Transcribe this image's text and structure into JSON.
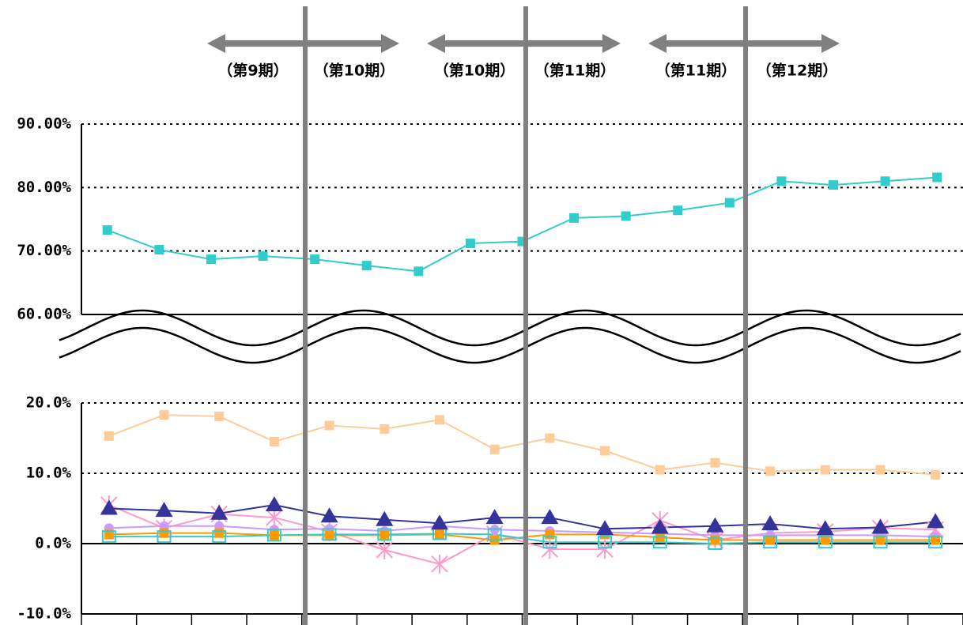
{
  "chart_data": [
    {
      "type": "line",
      "categories": [
        null,
        null,
        null,
        null,
        null,
        null,
        null,
        null,
        null,
        null,
        null,
        null,
        null,
        null,
        null,
        null,
        null
      ],
      "series": [
        {
          "color": "#33CCCC",
          "marker": "square",
          "values": [
            73.3,
            70.2,
            68.7,
            69.2,
            68.7,
            67.7,
            66.8,
            71.2,
            71.5,
            75.2,
            75.5,
            76.4,
            77.6,
            81.0,
            80.4,
            81.0,
            81.6
          ]
        }
      ],
      "ylim": [
        60,
        90
      ],
      "yticks": [
        {
          "value": 60,
          "label": "60.00%"
        },
        {
          "value": 70,
          "label": "70.00%"
        },
        {
          "value": 80,
          "label": "80.00%"
        },
        {
          "value": 90,
          "label": "90.00%"
        }
      ],
      "grid": true,
      "annotations": [
        "（第9期）",
        "（第10期）",
        "（第10期）",
        "（第11期）",
        "（第11期）",
        "（第12期）"
      ]
    },
    {
      "type": "line",
      "categories": [
        null,
        null,
        null,
        null,
        null,
        null,
        null,
        null,
        null,
        null,
        null,
        null,
        null,
        null,
        null,
        null
      ],
      "series": [
        {
          "color": "#FFCC99",
          "marker": "square",
          "values": [
            15.3,
            18.3,
            18.1,
            14.5,
            16.8,
            16.3,
            17.6,
            13.4,
            15.0,
            13.2,
            10.5,
            11.5,
            10.3,
            10.5,
            10.5,
            9.8
          ]
        },
        {
          "color": "#FF99CC",
          "marker": "asterisk",
          "values": [
            5.5,
            2.2,
            4.2,
            3.7,
            1.7,
            -0.9,
            -2.9,
            1.4,
            -0.8,
            -0.8,
            3.3,
            0.5,
            1.5,
            1.7,
            2.2,
            2.0
          ]
        },
        {
          "color": "#CC99FF",
          "marker": "circle",
          "values": [
            2.2,
            2.5,
            2.5,
            2.0,
            2.1,
            1.8,
            2.5,
            2.0,
            1.8,
            1.6,
            1.4,
            1.2,
            1.2,
            1.2,
            1.2,
            1.0
          ]
        },
        {
          "color": "#FF9900",
          "marker": "square",
          "values": [
            1.3,
            1.5,
            1.5,
            1.2,
            1.2,
            1.2,
            1.3,
            0.5,
            1.3,
            1.3,
            0.9,
            0.5,
            0.5,
            0.5,
            0.5,
            0.5
          ]
        },
        {
          "color": "#33CCCC",
          "marker": "square-open",
          "values": [
            1.0,
            1.0,
            1.0,
            1.2,
            1.3,
            1.3,
            1.4,
            1.3,
            0.2,
            0.2,
            0.2,
            0.0,
            0.2,
            0.2,
            0.2,
            0.2
          ]
        },
        {
          "color": "#333399",
          "marker": "triangle",
          "values": [
            5.0,
            4.7,
            4.3,
            5.5,
            3.9,
            3.4,
            2.9,
            3.7,
            3.7,
            2.1,
            2.3,
            2.5,
            2.8,
            2.1,
            2.3,
            3.1
          ]
        }
      ],
      "ylim": [
        -10,
        20
      ],
      "yticks": [
        {
          "value": -10,
          "label": "-10.0%"
        },
        {
          "value": 0,
          "label": "0.0%"
        },
        {
          "value": 10,
          "label": "10.0%"
        },
        {
          "value": 20,
          "label": "20.0%"
        }
      ],
      "grid": true
    }
  ]
}
